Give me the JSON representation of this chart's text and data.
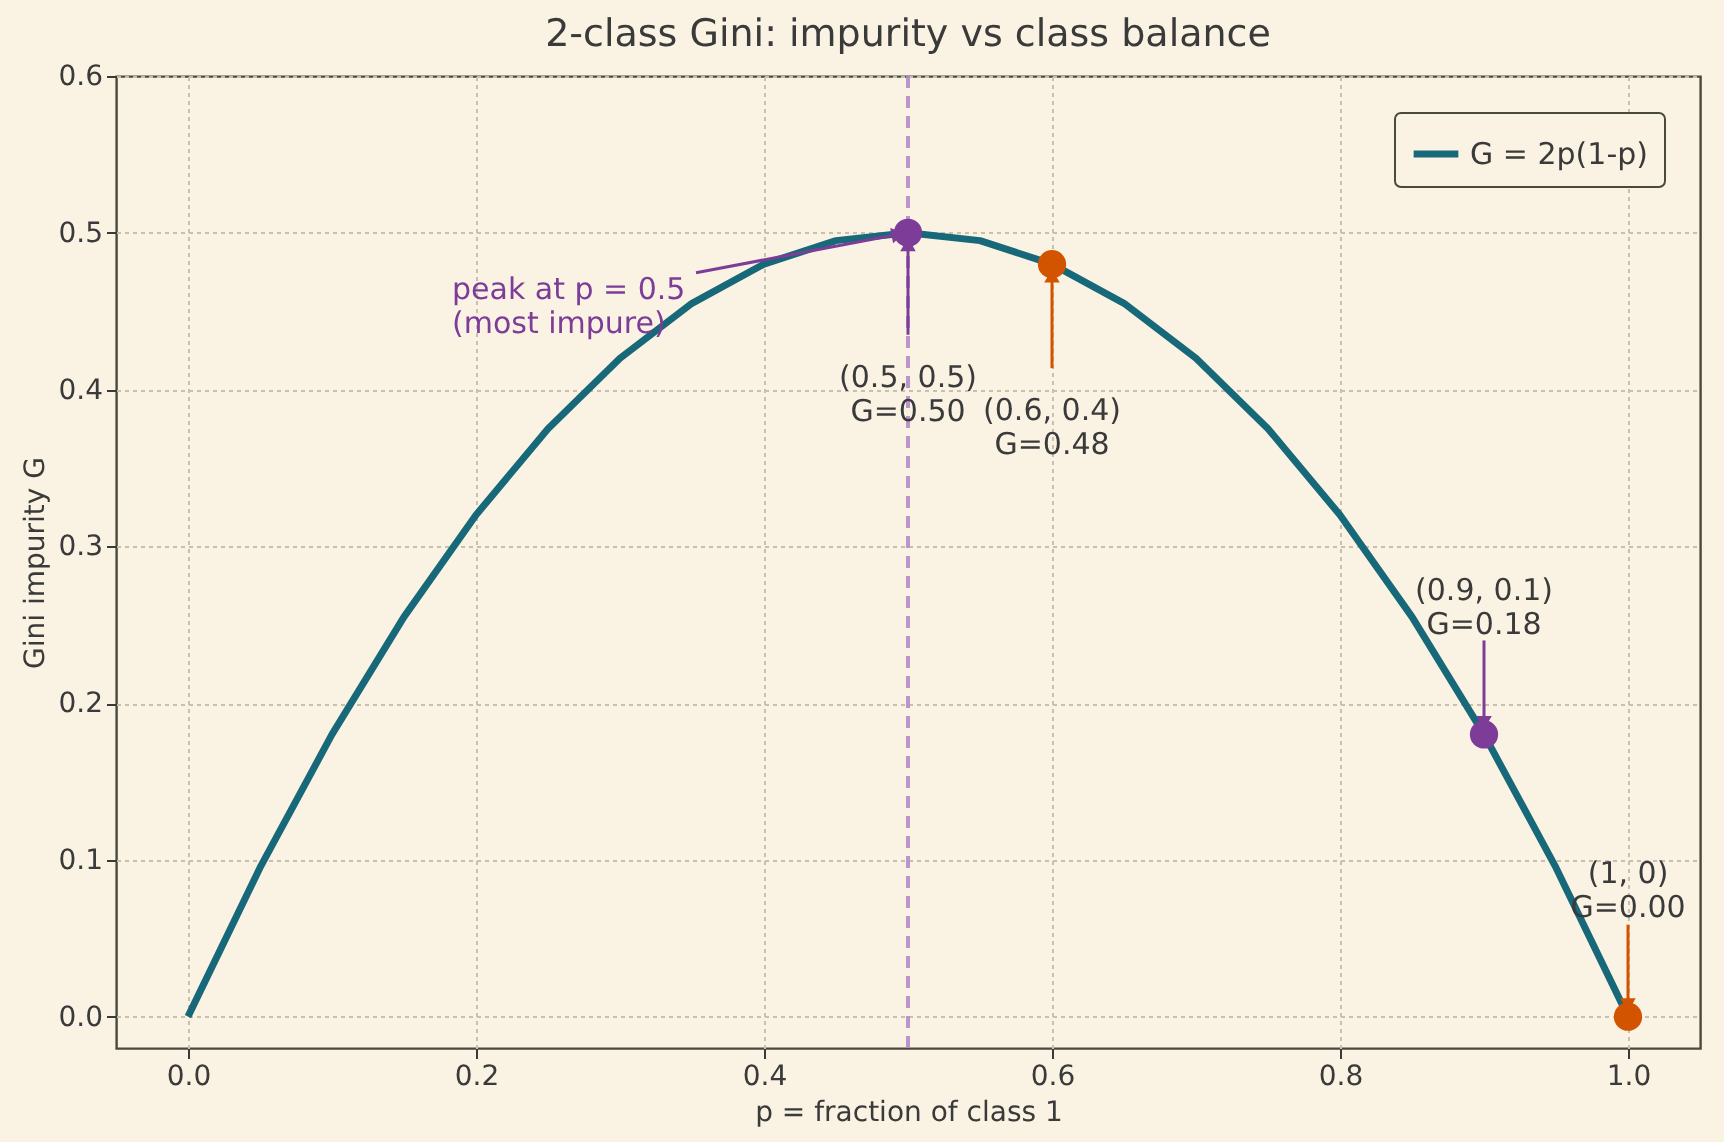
{
  "chart_data": {
    "type": "line",
    "title": "2-class Gini: impurity vs class balance",
    "xlabel": "p  =  fraction of class 1",
    "ylabel": "Gini impurity  G",
    "xlim": [
      -0.05,
      1.05
    ],
    "xticks": [
      {
        "value": 0,
        "label": "0.0"
      },
      0.2,
      0.4,
      0.6,
      0.8,
      {
        "value": 1,
        "label": "1.0"
      }
    ],
    "ylim": [
      -0.02,
      0.6
    ],
    "yticks": [
      {
        "value": 0,
        "label": "0.0"
      },
      0.1,
      0.2,
      0.3,
      0.4,
      0.5,
      0.6
    ],
    "grid": true,
    "legend": "top right",
    "series": [
      {
        "name": "G = 2p(1-p)",
        "type": "line",
        "color": "#17697a",
        "marker": "none",
        "line_style": "solid",
        "x": [
          0,
          0.05,
          0.1,
          0.15,
          0.2,
          0.25,
          0.3,
          0.35,
          0.4,
          0.45,
          0.5,
          0.55,
          0.6,
          0.65,
          0.7,
          0.75,
          0.8,
          0.85,
          0.9,
          0.95,
          1
        ],
        "values": [
          0,
          0.095,
          0.18,
          0.255,
          0.32,
          0.375,
          0.42,
          0.455,
          0.48,
          0.495,
          0.5,
          0.495,
          0.48,
          0.455,
          0.42,
          0.375,
          0.32,
          0.255,
          0.18,
          0.095,
          0
        ]
      },
      {
        "type": "scatter",
        "color": "#7d3c98",
        "marker": "circle",
        "x": [
          0.5,
          0.9
        ],
        "values": [
          0.5,
          0.18
        ]
      },
      {
        "type": "scatter",
        "color": "#d35400",
        "marker": "circle",
        "x": [
          0.6,
          1.0
        ],
        "values": [
          0.48,
          0.0
        ]
      }
    ],
    "ref_lines": [
      {
        "axis": "x",
        "value": 0.5,
        "color": "#b48ac6",
        "line_style": "dashed"
      }
    ],
    "annotations": [
      {
        "text": "peak at p = 0.5\n(most impure)",
        "x": 0.5,
        "y": 0.5
      },
      {
        "text": "(0.5, 0.5)\nG=0.50",
        "x": 0.5,
        "y": 0.5
      },
      {
        "text": "(0.6, 0.4)\nG=0.48",
        "x": 0.6,
        "y": 0.48
      },
      {
        "text": "(0.9, 0.1)\nG=0.18",
        "x": 0.9,
        "y": 0.18
      },
      {
        "text": "(1, 0)\nG=0.00",
        "x": 1.0,
        "y": 0.0
      }
    ]
  }
}
